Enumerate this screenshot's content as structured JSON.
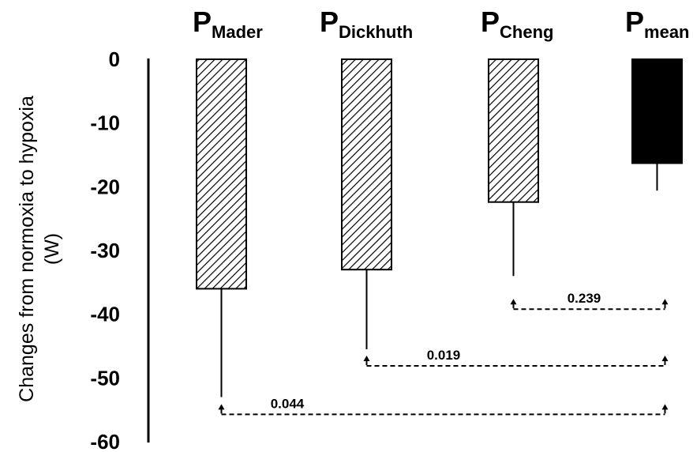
{
  "chart_data": {
    "type": "bar",
    "title": "",
    "ylabel_lines": [
      "Changes from normoxia to hypoxia",
      "(W)"
    ],
    "ylim": [
      -60,
      0
    ],
    "yticks": [
      0,
      -10,
      -20,
      -30,
      -40,
      -50,
      -60
    ],
    "ytick_labels": [
      "0",
      "-10",
      "-20",
      "-30",
      "-40",
      "-50",
      "-60"
    ],
    "grid": false,
    "categories": [
      {
        "main": "P",
        "sub": "Mader"
      },
      {
        "main": "P",
        "sub": "Dickhuth"
      },
      {
        "main": "P",
        "sub": "Cheng"
      },
      {
        "main": "P",
        "sub": "mean"
      }
    ],
    "values": [
      -36,
      -33,
      -22.4,
      -16.3
    ],
    "error_bar_ends": [
      -53,
      -45.5,
      -34,
      -20.6
    ],
    "bar_fills": [
      "hatched",
      "hatched",
      "hatched",
      "solid"
    ],
    "colors": {
      "bars": "#000000",
      "hatch": "#000000",
      "background": "#ffffff"
    },
    "comparisons": [
      {
        "from": 2,
        "to": 3,
        "label": "0.239",
        "y": -39.2
      },
      {
        "from": 1,
        "to": 3,
        "label": "0.019",
        "y": -48.1
      },
      {
        "from": 0,
        "to": 3,
        "label": "0.044",
        "y": -55.7
      }
    ]
  }
}
